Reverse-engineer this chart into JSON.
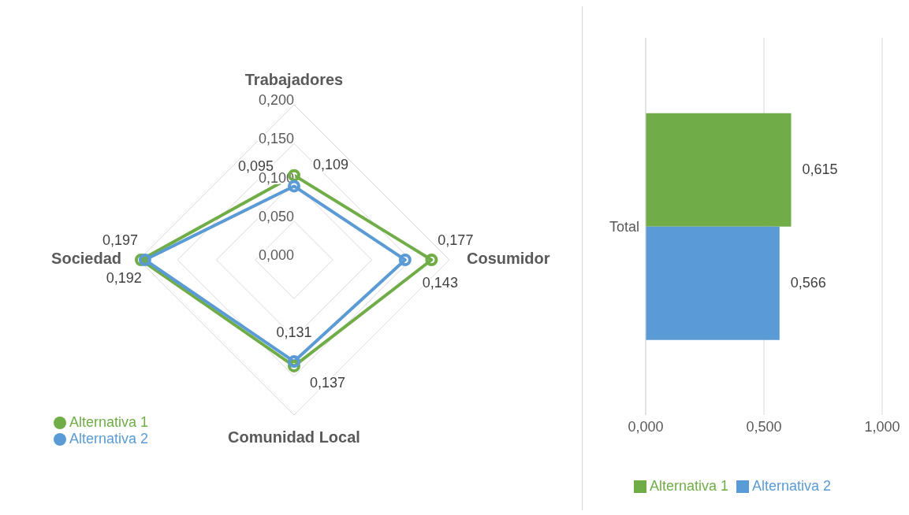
{
  "chart_data": [
    {
      "type": "radar",
      "categories": [
        "Trabajadores",
        "Cosumidor",
        "Comunidad Local",
        "Sociedad"
      ],
      "series": [
        {
          "name": "Alternativa 1",
          "color": "#70ad47",
          "values": [
            0.109,
            0.177,
            0.137,
            0.197
          ],
          "value_labels": [
            "0,109",
            "0,177",
            "0,137",
            "0,197"
          ]
        },
        {
          "name": "Alternativa 2",
          "color": "#5b9bd5",
          "values": [
            0.095,
            0.143,
            0.131,
            0.192
          ],
          "value_labels": [
            "0,095",
            "0,143",
            "0,131",
            "0,192"
          ]
        }
      ],
      "ylim": [
        0,
        0.2
      ],
      "yticks": [
        {
          "value": 0,
          "label": "0,000"
        },
        {
          "value": 0.05,
          "label": "0,050"
        },
        {
          "value": 0.1,
          "label": "0,100"
        },
        {
          "value": 0.15,
          "label": "0,150"
        },
        {
          "value": 0.2,
          "label": "0,200"
        }
      ],
      "grid": true,
      "legend": "bottom left",
      "marker": "circle"
    },
    {
      "type": "bar",
      "orientation": "horizontal",
      "categories": [
        "Total"
      ],
      "series": [
        {
          "name": "Alternativa 1",
          "color": "#70ad47",
          "values": [
            0.615
          ],
          "value_labels": [
            "0,615"
          ]
        },
        {
          "name": "Alternativa 2",
          "color": "#5b9bd5",
          "values": [
            0.566
          ],
          "value_labels": [
            "0,566"
          ]
        }
      ],
      "xlim": [
        0,
        1
      ],
      "xticks": [
        {
          "value": 0,
          "label": "0,000"
        },
        {
          "value": 0.5,
          "label": "0,500"
        },
        {
          "value": 1,
          "label": "1,000"
        }
      ],
      "grid": "x",
      "legend": "bottom"
    }
  ]
}
